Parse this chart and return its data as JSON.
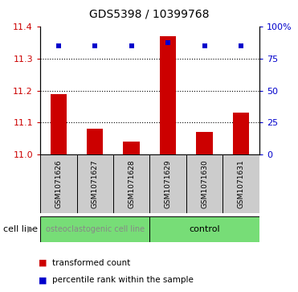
{
  "title": "GDS5398 / 10399768",
  "samples": [
    "GSM1071626",
    "GSM1071627",
    "GSM1071628",
    "GSM1071629",
    "GSM1071630",
    "GSM1071631"
  ],
  "bar_values": [
    11.19,
    11.08,
    11.04,
    11.37,
    11.07,
    11.13
  ],
  "bar_baseline": 11.0,
  "percentile_values": [
    85,
    85,
    85,
    87,
    85,
    85
  ],
  "ylim_left": [
    11.0,
    11.4
  ],
  "ylim_right": [
    0,
    100
  ],
  "yticks_left": [
    11.0,
    11.1,
    11.2,
    11.3,
    11.4
  ],
  "yticks_right": [
    0,
    25,
    50,
    75,
    100
  ],
  "ytick_labels_right": [
    "0",
    "25",
    "50",
    "75",
    "100%"
  ],
  "bar_color": "#cc0000",
  "blue_color": "#0000cc",
  "group1_label": "osteoclastogenic cell line",
  "group2_label": "control",
  "group1_indices": [
    0,
    1,
    2
  ],
  "group2_indices": [
    3,
    4,
    5
  ],
  "group_bg_color": "#77dd77",
  "group1_text_color": "#888888",
  "sample_box_color": "#cccccc",
  "legend_bar_label": "transformed count",
  "legend_blue_label": "percentile rank within the sample",
  "cell_line_label": "cell line",
  "title_fontsize": 10,
  "tick_fontsize": 8,
  "sample_fontsize": 6.5,
  "legend_fontsize": 7.5,
  "group_fontsize": 7
}
